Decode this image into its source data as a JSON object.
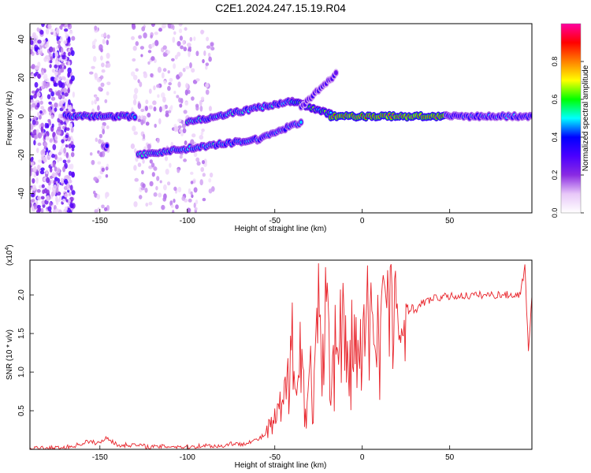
{
  "page": {
    "title": "C2E1.2024.247.15.19.R04"
  },
  "chart_data": [
    {
      "type": "heatmap",
      "title": "C2E1.2024.247.15.19.R04",
      "xlabel": "Height of straight line (km)",
      "ylabel": "Frequency (Hz)",
      "xlim": [
        -190,
        97
      ],
      "ylim": [
        -50,
        48
      ],
      "xticks": [
        -150,
        -100,
        -50,
        0,
        50
      ],
      "yticks": [
        -40,
        -20,
        0,
        20,
        40
      ],
      "colorbar": {
        "label": "Normalized spectral amplitude",
        "range": [
          0,
          1
        ],
        "ticks": [
          0.0,
          0.2,
          0.4,
          0.6,
          0.8
        ],
        "tick_labels": [
          "0.0",
          "0.2",
          "0.4",
          "0.6",
          "0.8"
        ],
        "colormap": [
          "#ffffff",
          "#e8c8f8",
          "#8a2be2",
          "#4b00ff",
          "#0000ff",
          "#00ffff",
          "#00ff00",
          "#ffff00",
          "#ff8000",
          "#ff0000",
          "#ff00a0"
        ]
      },
      "features": [
        {
          "name": "main signal",
          "x": [
            -170,
            -130
          ],
          "freq": [
            0,
            0
          ],
          "amplitude": 0.5
        },
        {
          "name": "main signal",
          "x": [
            -100,
            -40
          ],
          "freq": [
            -3,
            8
          ],
          "amplitude": 0.5
        },
        {
          "name": "main signal",
          "x": [
            -40,
            -18
          ],
          "freq": [
            8,
            1
          ],
          "amplitude": 0.6
        },
        {
          "name": "main signal",
          "x": [
            -18,
            48
          ],
          "freq": [
            0,
            0
          ],
          "amplitude": 0.95
        },
        {
          "name": "main signal",
          "x": [
            48,
            97
          ],
          "freq": [
            0,
            0
          ],
          "amplitude": 0.45
        },
        {
          "name": "lower branch",
          "x": [
            -128,
            -60
          ],
          "freq": [
            -20,
            -12
          ],
          "amplitude": 0.5
        },
        {
          "name": "lower branch",
          "x": [
            -60,
            -35
          ],
          "freq": [
            -12,
            -3
          ],
          "amplitude": 0.45
        },
        {
          "name": "upper branch",
          "x": [
            -35,
            -15
          ],
          "freq": [
            5,
            22
          ],
          "amplitude": 0.35
        },
        {
          "name": "isolated blob",
          "x": [
            -148,
            -146
          ],
          "freq": [
            -16,
            -16
          ],
          "amplitude": 0.4
        }
      ],
      "noise_bands": [
        {
          "x": [
            -190,
            -165
          ],
          "freq": [
            -50,
            48
          ],
          "density": "high"
        },
        {
          "x": [
            -155,
            -145
          ],
          "freq": [
            -50,
            48
          ],
          "density": "low"
        },
        {
          "x": [
            -132,
            -85
          ],
          "freq": [
            -50,
            48
          ],
          "density": "medium"
        }
      ]
    },
    {
      "type": "line",
      "title": "",
      "xlabel": "Height of straight line (km)",
      "ylabel": "SNR (10 * v/v)",
      "multiplier_label": "(x10",
      "multiplier_exponent": "4",
      "multiplier_close": ")",
      "xlim": [
        -190,
        97
      ],
      "ylim": [
        0,
        2.45
      ],
      "xticks": [
        -150,
        -100,
        -50,
        0,
        50
      ],
      "yticks": [
        0.5,
        1.0,
        1.5,
        2.0
      ],
      "ytick_labels": [
        "0.5",
        "1.0",
        "1.5",
        "2.0"
      ],
      "color": "#e8232a",
      "series": [
        {
          "x": [
            -190,
            -170,
            -162,
            -158,
            -150,
            -146,
            -140,
            -132,
            -120,
            -110,
            -100,
            -90,
            -80,
            -75,
            -70,
            -65,
            -60,
            -55,
            -52,
            -50,
            -48,
            -45,
            -42,
            -40,
            -38,
            -35,
            -32,
            -30,
            -28,
            -25,
            -22,
            -20,
            -18,
            -15,
            -12,
            -10,
            -8,
            -5,
            -2,
            0,
            3,
            6,
            10,
            12,
            15,
            18,
            20,
            22,
            25,
            28,
            30,
            35,
            40,
            45,
            50,
            60,
            70,
            80,
            90,
            93,
            95,
            97
          ],
          "y": [
            0.01,
            0.02,
            0.06,
            0.1,
            0.08,
            0.16,
            0.05,
            0.06,
            0.03,
            0.04,
            0.03,
            0.05,
            0.04,
            0.08,
            0.06,
            0.1,
            0.12,
            0.2,
            0.3,
            0.35,
            0.45,
            0.55,
            0.9,
            1.95,
            0.6,
            1.3,
            0.4,
            1.0,
            0.6,
            1.55,
            0.9,
            2.2,
            1.0,
            1.3,
            1.6,
            1.5,
            0.8,
            1.5,
            1.05,
            1.25,
            1.55,
            1.7,
            1.6,
            2.3,
            1.6,
            1.7,
            1.9,
            0.9,
            1.75,
            1.85,
            1.8,
            1.9,
            1.95,
            1.97,
            1.98,
            1.99,
            2.0,
            2.0,
            2.0,
            2.35,
            1.3,
            1.98
          ]
        }
      ]
    }
  ]
}
